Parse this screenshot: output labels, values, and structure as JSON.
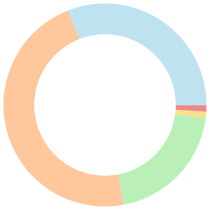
{
  "chart_data": {
    "type": "donut",
    "values": [
      31,
      1,
      1,
      20,
      47
    ],
    "colors": [
      "#bfe2f0",
      "#ea8a86",
      "#fde08c",
      "#baf0b8",
      "#fec79c"
    ]
  }
}
